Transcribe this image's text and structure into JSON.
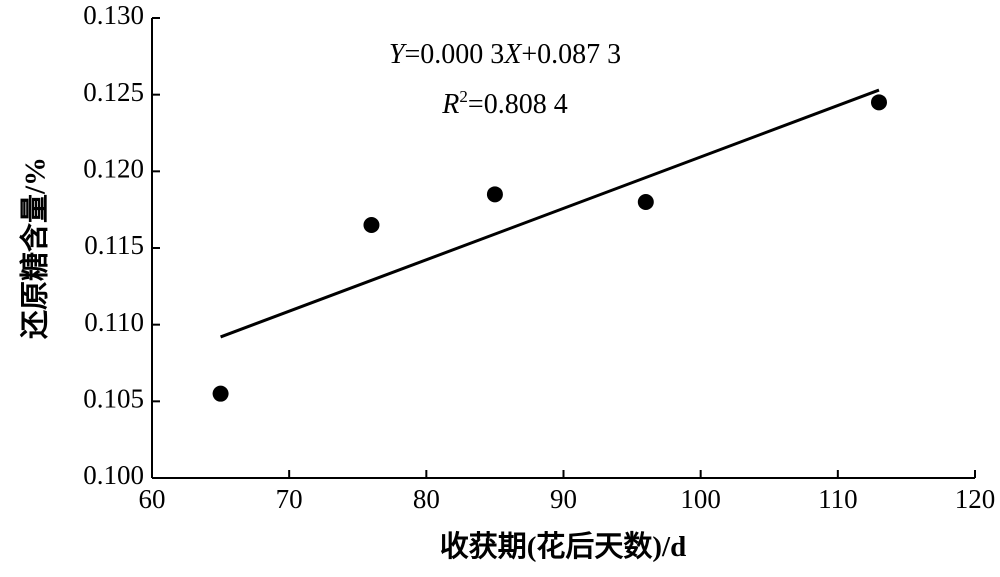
{
  "chart_data": {
    "type": "scatter",
    "x_label": "收获期(花后天数)/d",
    "y_label": "还原糖含量/%",
    "x": [
      65,
      76,
      85,
      96,
      113
    ],
    "values": [
      0.1055,
      0.1165,
      0.1185,
      0.118,
      0.1245
    ],
    "color": "#000000",
    "trendline": {
      "x": [
        65,
        113
      ],
      "values": [
        0.1092,
        0.1253
      ]
    },
    "annotations": {
      "equation": [
        "Y",
        "=0.000 3",
        "X",
        "+0.087 3"
      ],
      "r2": [
        "R",
        "2",
        "=0.808 4"
      ]
    },
    "xlim": [
      60,
      120
    ],
    "xticks": [
      60,
      70,
      80,
      90,
      100,
      110,
      120
    ],
    "ylim": [
      0.1,
      0.13
    ],
    "yticks": [
      {
        "value": 0.1,
        "label": "0.100"
      },
      0.105,
      {
        "value": 0.11,
        "label": "0.110"
      },
      0.115,
      {
        "value": 0.12,
        "label": "0.120"
      },
      0.125,
      {
        "value": 0.13,
        "label": "0.130"
      }
    ],
    "grid": false
  }
}
